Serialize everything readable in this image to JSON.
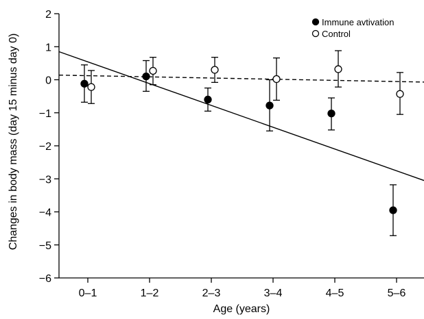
{
  "chart_data": {
    "type": "scatter",
    "xlabel": "Age (years)",
    "ylabel": "Changes in body mass (day 15 minus day 0)",
    "categories": [
      "0–1",
      "1–2",
      "2–3",
      "3–4",
      "4–5",
      "5–6"
    ],
    "ylim": [
      -6,
      2
    ],
    "yticks": [
      2,
      1,
      0,
      -1,
      -2,
      -3,
      -4,
      -5,
      -6
    ],
    "ytick_labels": [
      "2",
      "1",
      "0",
      "−1",
      "−2",
      "−3",
      "−4",
      "−5",
      "−6"
    ],
    "grid": false,
    "legend_position": "top-right",
    "series": [
      {
        "name": "Immune avtivation",
        "marker": "filled-circle",
        "color": "#000000",
        "values": [
          -0.12,
          0.1,
          -0.6,
          -0.78,
          -1.02,
          -3.95
        ],
        "error_low": [
          -0.68,
          -0.35,
          -0.95,
          -1.55,
          -1.52,
          -4.72
        ],
        "error_high": [
          0.45,
          0.58,
          -0.25,
          0.0,
          -0.55,
          -3.18
        ]
      },
      {
        "name": "Control",
        "marker": "open-circle",
        "color": "#000000",
        "values": [
          -0.22,
          0.27,
          0.3,
          0.02,
          0.32,
          -0.43
        ],
        "error_low": [
          -0.72,
          -0.15,
          -0.08,
          -0.62,
          -0.22,
          -1.05
        ],
        "error_high": [
          0.28,
          0.68,
          0.68,
          0.66,
          0.88,
          0.22
        ]
      }
    ],
    "trend_lines": [
      {
        "series": "Immune avtivation",
        "style": "solid",
        "y_start": 0.85,
        "y_end": -3.05
      },
      {
        "series": "Control",
        "style": "dashed",
        "y_start": 0.14,
        "y_end": -0.07
      }
    ]
  }
}
